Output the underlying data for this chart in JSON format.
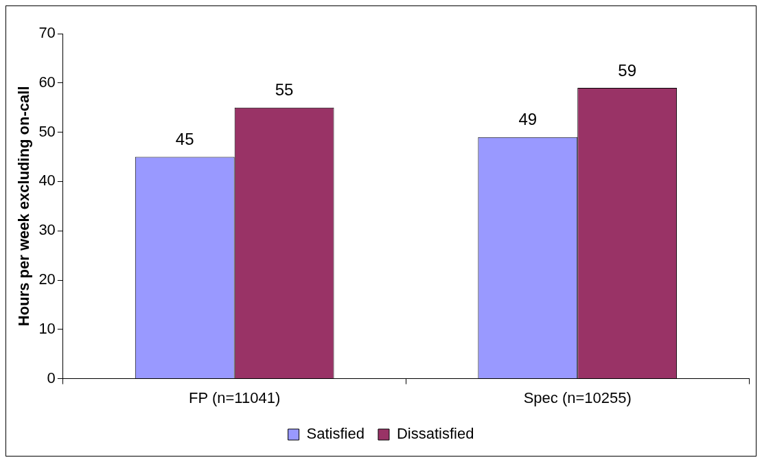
{
  "chart_data": {
    "type": "bar",
    "ylabel": "Hours per week excluding on-call",
    "categories": [
      "FP (n=11041)",
      "Spec (n=10255)"
    ],
    "series": [
      {
        "name": "Satisfied",
        "color": "#9999ff",
        "values": [
          45,
          49
        ]
      },
      {
        "name": "Dissatisfied",
        "color": "#993366",
        "values": [
          55,
          59
        ]
      }
    ],
    "ylim": [
      0,
      70
    ],
    "yticks": [
      0,
      10,
      20,
      30,
      40,
      50,
      60,
      70
    ],
    "grid": false,
    "legend": "bottom",
    "data_labels": true
  }
}
